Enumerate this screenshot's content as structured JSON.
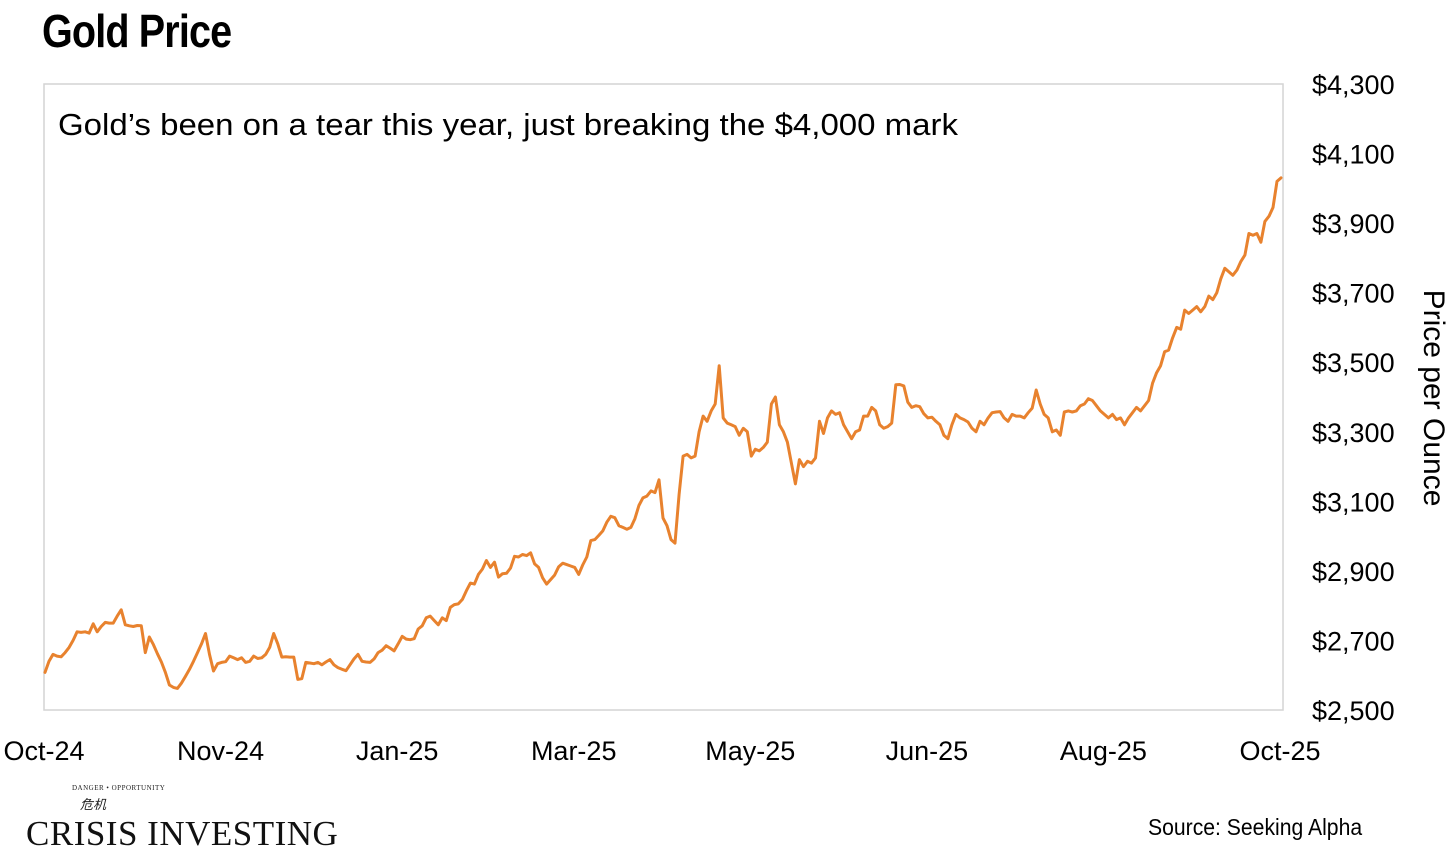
{
  "page_title": "Gold Price",
  "source_text": "Source: Seeking Alpha",
  "logo": {
    "tagline": "DANGER • OPPORTUNITY",
    "mark": "危机",
    "name": "CRISIS INVESTING"
  },
  "colors": {
    "line": "#E8822E",
    "plot_border": "#D4D4D4"
  },
  "chart_data": {
    "type": "line",
    "title": "Gold Price",
    "annotation": "Gold’s been on a tear this year, just breaking the $4,000 mark",
    "xlabel": "",
    "ylabel": "Price per Ounce",
    "ylim": [
      2500,
      4300
    ],
    "yticks": [
      2500,
      2700,
      2900,
      3100,
      3300,
      3500,
      3700,
      3900,
      4100,
      4300
    ],
    "ytick_labels": [
      "$2,500",
      "$2,700",
      "$2,900",
      "$3,100",
      "$3,300",
      "$3,500",
      "$3,700",
      "$3,900",
      "$4,100",
      "$4,300"
    ],
    "xtick_labels": [
      "Oct-24",
      "Nov-24",
      "Jan-25",
      "Mar-25",
      "May-25",
      "Jun-25",
      "Aug-25",
      "Oct-25"
    ],
    "grid": false,
    "series": [
      {
        "name": "Gold Price",
        "values": [
          2608,
          2640,
          2660,
          2655,
          2653,
          2665,
          2680,
          2700,
          2725,
          2723,
          2725,
          2721,
          2748,
          2725,
          2740,
          2752,
          2750,
          2750,
          2770,
          2788,
          2745,
          2742,
          2740,
          2743,
          2742,
          2665,
          2710,
          2688,
          2662,
          2638,
          2608,
          2572,
          2565,
          2562,
          2577,
          2597,
          2617,
          2640,
          2665,
          2690,
          2720,
          2660,
          2612,
          2633,
          2637,
          2639,
          2655,
          2650,
          2645,
          2650,
          2637,
          2640,
          2655,
          2648,
          2650,
          2660,
          2680,
          2720,
          2690,
          2652,
          2653,
          2652,
          2652,
          2588,
          2590,
          2637,
          2635,
          2633,
          2637,
          2630,
          2638,
          2645,
          2630,
          2622,
          2617,
          2613,
          2630,
          2647,
          2660,
          2640,
          2638,
          2637,
          2647,
          2665,
          2672,
          2685,
          2678,
          2670,
          2690,
          2712,
          2704,
          2702,
          2705,
          2733,
          2742,
          2765,
          2770,
          2757,
          2745,
          2765,
          2757,
          2795,
          2803,
          2805,
          2818,
          2843,
          2865,
          2862,
          2890,
          2905,
          2930,
          2910,
          2925,
          2882,
          2892,
          2893,
          2908,
          2942,
          2940,
          2947,
          2944,
          2952,
          2920,
          2910,
          2880,
          2862,
          2875,
          2888,
          2912,
          2922,
          2918,
          2914,
          2910,
          2890,
          2917,
          2940,
          2987,
          2990,
          3002,
          3015,
          3040,
          3057,
          3053,
          3030,
          3025,
          3020,
          3025,
          3050,
          3088,
          3110,
          3115,
          3130,
          3125,
          3162,
          3052,
          3030,
          2990,
          2980,
          3120,
          3230,
          3235,
          3225,
          3230,
          3300,
          3345,
          3330,
          3360,
          3380,
          3490,
          3340,
          3325,
          3320,
          3315,
          3290,
          3310,
          3300,
          3230,
          3250,
          3245,
          3255,
          3270,
          3380,
          3400,
          3320,
          3300,
          3270,
          3210,
          3150,
          3220,
          3200,
          3215,
          3210,
          3225,
          3330,
          3295,
          3340,
          3360,
          3350,
          3355,
          3320,
          3300,
          3280,
          3300,
          3305,
          3345,
          3345,
          3370,
          3360,
          3320,
          3310,
          3315,
          3325,
          3435,
          3436,
          3432,
          3385,
          3370,
          3375,
          3372,
          3352,
          3340,
          3342,
          3330,
          3320,
          3290,
          3280,
          3320,
          3350,
          3340,
          3335,
          3328,
          3310,
          3300,
          3330,
          3320,
          3340,
          3355,
          3357,
          3358,
          3340,
          3330,
          3350,
          3345,
          3345,
          3340,
          3355,
          3368,
          3420,
          3380,
          3350,
          3340,
          3300,
          3305,
          3290,
          3357,
          3360,
          3357,
          3360,
          3375,
          3380,
          3395,
          3390,
          3375,
          3360,
          3350,
          3340,
          3350,
          3335,
          3340,
          3320,
          3340,
          3355,
          3370,
          3360,
          3375,
          3390,
          3440,
          3470,
          3490,
          3530,
          3535,
          3570,
          3600,
          3595,
          3650,
          3640,
          3650,
          3660,
          3645,
          3660,
          3690,
          3680,
          3700,
          3740,
          3770,
          3760,
          3750,
          3765,
          3790,
          3808,
          3870,
          3865,
          3870,
          3845,
          3905,
          3920,
          3945,
          4020,
          4030
        ]
      }
    ]
  }
}
